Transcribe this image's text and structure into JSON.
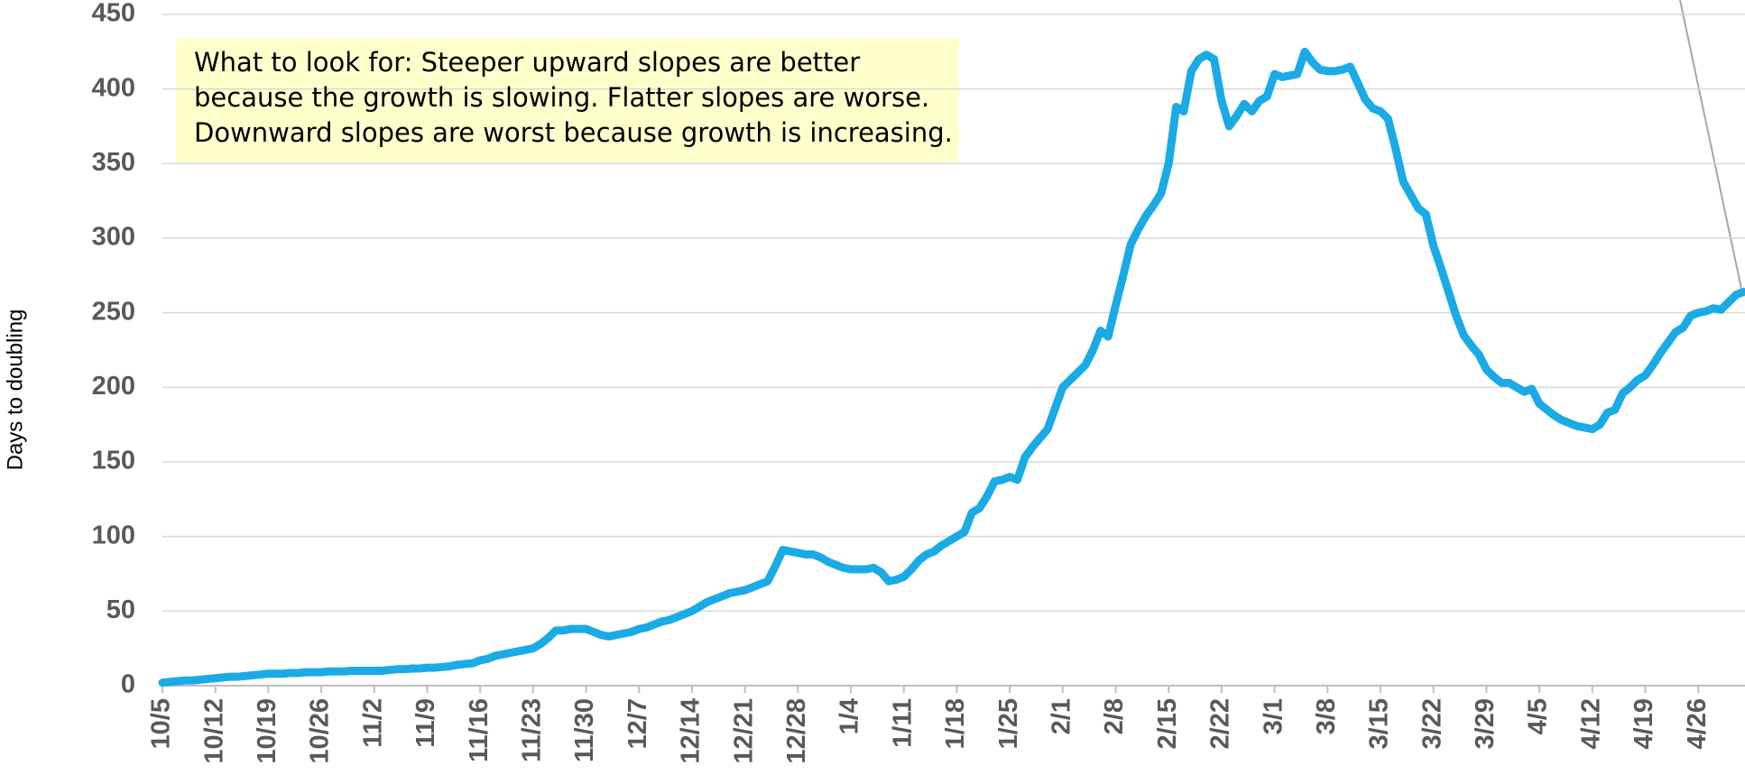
{
  "chart_data": {
    "type": "line",
    "y_label": "Days to doubling",
    "annotation": [
      "What to look for: Steeper upward slopes are better",
      "because the growth is slowing. Flatter slopes are worse.",
      "Downward slopes are worst because growth is increasing."
    ],
    "categories": [
      "10/5",
      null,
      null,
      null,
      null,
      null,
      null,
      "10/12",
      null,
      null,
      null,
      null,
      null,
      null,
      "10/19",
      null,
      null,
      null,
      null,
      null,
      null,
      "10/26",
      null,
      null,
      null,
      null,
      null,
      null,
      "11/2",
      null,
      null,
      null,
      null,
      null,
      null,
      "11/9",
      null,
      null,
      null,
      null,
      null,
      null,
      "11/16",
      null,
      null,
      null,
      null,
      null,
      null,
      "11/23",
      null,
      null,
      null,
      null,
      null,
      null,
      "11/30",
      null,
      null,
      null,
      null,
      null,
      null,
      "12/7",
      null,
      null,
      null,
      null,
      null,
      null,
      "12/14",
      null,
      null,
      null,
      null,
      null,
      null,
      "12/21",
      null,
      null,
      null,
      null,
      null,
      null,
      "12/28",
      null,
      null,
      null,
      null,
      null,
      null,
      "1/4",
      null,
      null,
      null,
      null,
      null,
      null,
      "1/11",
      null,
      null,
      null,
      null,
      null,
      null,
      "1/18",
      null,
      null,
      null,
      null,
      null,
      null,
      "1/25",
      null,
      null,
      null,
      null,
      null,
      null,
      "2/1",
      null,
      null,
      null,
      null,
      null,
      null,
      "2/8",
      null,
      null,
      null,
      null,
      null,
      null,
      "2/15",
      null,
      null,
      null,
      null,
      null,
      null,
      "2/22",
      null,
      null,
      null,
      null,
      null,
      null,
      "3/1",
      null,
      null,
      null,
      null,
      null,
      null,
      "3/8",
      null,
      null,
      null,
      null,
      null,
      null,
      "3/15",
      null,
      null,
      null,
      null,
      null,
      null,
      "3/22",
      null,
      null,
      null,
      null,
      null,
      null,
      "3/29",
      null,
      null,
      null,
      null,
      null,
      null,
      "4/5",
      null,
      null,
      null,
      null,
      null,
      null,
      "4/12",
      null,
      null,
      null,
      null,
      null,
      null,
      "4/19",
      null,
      null,
      null,
      null,
      null,
      null,
      "4/26",
      null,
      null,
      null,
      null,
      null,
      null
    ],
    "values": [
      2,
      2.5,
      3,
      3.5,
      3.5,
      4,
      4.5,
      5,
      5.5,
      6,
      6,
      6.5,
      7,
      7.5,
      8,
      8,
      8,
      8.5,
      8.5,
      9,
      9,
      9,
      9.5,
      9.5,
      9.5,
      10,
      10,
      10,
      10,
      10,
      10.5,
      11,
      11,
      11.5,
      11.5,
      12,
      12,
      12.5,
      13,
      14,
      14.5,
      15,
      17,
      18,
      20,
      21,
      22,
      23,
      24,
      25,
      28,
      32,
      37,
      37,
      38,
      38,
      38,
      36,
      34,
      33,
      34,
      35,
      36,
      38,
      39,
      41,
      43,
      44,
      46,
      48,
      50,
      53,
      56,
      58,
      60,
      62,
      63,
      64,
      66,
      68,
      70,
      80,
      91,
      90,
      89,
      88,
      88,
      86,
      83,
      81,
      79,
      78,
      78,
      78,
      79,
      76,
      70,
      71,
      73,
      78,
      84,
      88,
      90,
      94,
      97,
      100,
      103,
      116,
      119,
      127,
      137,
      138,
      140,
      138,
      153,
      160,
      166,
      172,
      186,
      200,
      205,
      210,
      215,
      225,
      238,
      234,
      255,
      275,
      296,
      306,
      315,
      322,
      330,
      350,
      388,
      385,
      412,
      420,
      423,
      420,
      392,
      375,
      382,
      390,
      385,
      392,
      395,
      410,
      408,
      409,
      410,
      425,
      418,
      413,
      412,
      412,
      413,
      415,
      404,
      393,
      387,
      385,
      380,
      360,
      338,
      329,
      320,
      316,
      295,
      280,
      264,
      248,
      235,
      228,
      222,
      212,
      207,
      203,
      203,
      200,
      197,
      199,
      189,
      185,
      181,
      178,
      176,
      174,
      173,
      172,
      175,
      183,
      185,
      196,
      200,
      205,
      208,
      215,
      223,
      230,
      237,
      240,
      248,
      250,
      251,
      253,
      252,
      257,
      262,
      264
    ],
    "color": "#1aabe6",
    "ylim": [
      0,
      450
    ],
    "yticks": [
      0,
      50,
      100,
      150,
      200,
      250,
      300,
      350,
      400,
      450
    ],
    "grid": true
  }
}
